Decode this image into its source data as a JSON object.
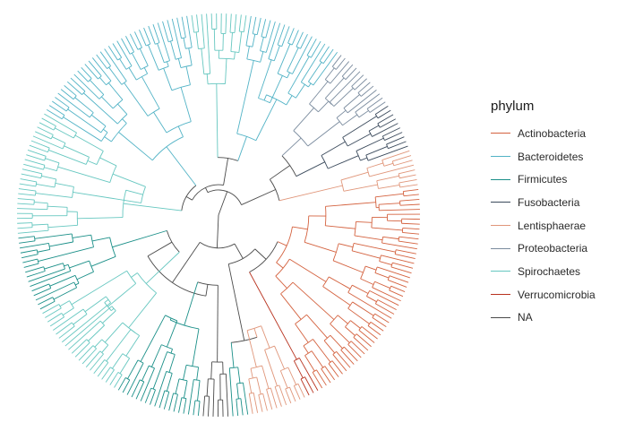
{
  "legend": {
    "title": "phylum",
    "items": [
      {
        "label": "Actinobacteria",
        "color": "#d4623f"
      },
      {
        "label": "Bacteroidetes",
        "color": "#52b3c6"
      },
      {
        "label": "Firmicutes",
        "color": "#1a8f88"
      },
      {
        "label": "Fusobacteria",
        "color": "#3b4a5c"
      },
      {
        "label": "Lentisphaerae",
        "color": "#e0967a"
      },
      {
        "label": "Proteobacteria",
        "color": "#7a8b9e"
      },
      {
        "label": "Spirochaetes",
        "color": "#66c7c0"
      },
      {
        "label": "Verrucomicrobia",
        "color": "#b8321e"
      },
      {
        "label": "NA",
        "color": "#4a4a4a"
      }
    ]
  },
  "tree": {
    "layout": "circular",
    "clades": [
      {
        "phylum": "Actinobacteria",
        "tips": 48
      },
      {
        "phylum": "Verrucomicrobia",
        "tips": 3
      },
      {
        "phylum": "Lentisphaerae",
        "tips": 12
      },
      {
        "phylum": "Firmicutes",
        "tips": 4
      },
      {
        "phylum": "NA",
        "tips": 6
      },
      {
        "phylum": "Firmicutes",
        "tips": 18
      },
      {
        "phylum": "Spirochaetes",
        "tips": 22
      },
      {
        "phylum": "Firmicutes",
        "tips": 16
      },
      {
        "phylum": "Spirochaetes",
        "tips": 26
      },
      {
        "phylum": "Bacteroidetes",
        "tips": 36
      },
      {
        "phylum": "Spirochaetes",
        "tips": 12
      },
      {
        "phylum": "Bacteroidetes",
        "tips": 20
      },
      {
        "phylum": "Proteobacteria",
        "tips": 14
      },
      {
        "phylum": "Fusobacteria",
        "tips": 10
      },
      {
        "phylum": "Lentisphaerae",
        "tips": 8
      }
    ]
  }
}
